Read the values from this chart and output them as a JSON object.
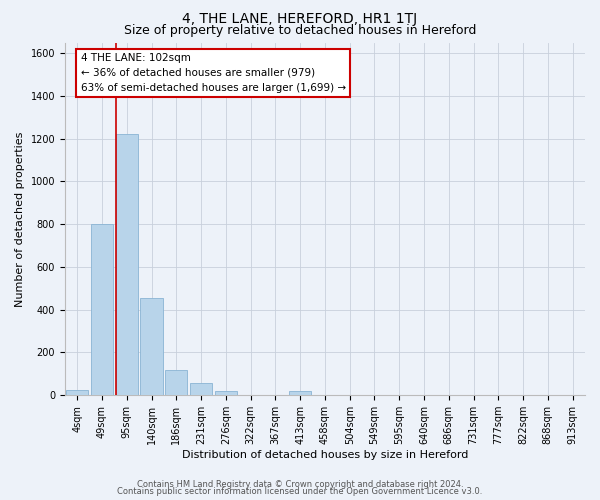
{
  "title": "4, THE LANE, HEREFORD, HR1 1TJ",
  "subtitle": "Size of property relative to detached houses in Hereford",
  "xlabel": "Distribution of detached houses by size in Hereford",
  "ylabel": "Number of detached properties",
  "bar_labels": [
    "4sqm",
    "49sqm",
    "95sqm",
    "140sqm",
    "186sqm",
    "231sqm",
    "276sqm",
    "322sqm",
    "367sqm",
    "413sqm",
    "458sqm",
    "504sqm",
    "549sqm",
    "595sqm",
    "640sqm",
    "686sqm",
    "731sqm",
    "777sqm",
    "822sqm",
    "868sqm",
    "913sqm"
  ],
  "bar_values": [
    25,
    800,
    1220,
    455,
    120,
    58,
    22,
    0,
    0,
    22,
    0,
    0,
    0,
    0,
    0,
    0,
    0,
    0,
    0,
    0,
    0
  ],
  "bar_color": "#b8d4ea",
  "bar_edge_color": "#8ab4d4",
  "vline_color": "#cc0000",
  "ylim": [
    0,
    1650
  ],
  "yticks": [
    0,
    200,
    400,
    600,
    800,
    1000,
    1200,
    1400,
    1600
  ],
  "annotation_line1": "4 THE LANE: 102sqm",
  "annotation_line2": "← 36% of detached houses are smaller (979)",
  "annotation_line3": "63% of semi-detached houses are larger (1,699) →",
  "annotation_box_color": "#ffffff",
  "annotation_box_edge": "#cc0000",
  "footer_line1": "Contains HM Land Registry data © Crown copyright and database right 2024.",
  "footer_line2": "Contains public sector information licensed under the Open Government Licence v3.0.",
  "bg_color": "#edf2f9",
  "grid_color": "#c8d0dc",
  "title_fontsize": 10,
  "subtitle_fontsize": 9,
  "axis_label_fontsize": 8,
  "tick_fontsize": 7,
  "footer_fontsize": 6
}
